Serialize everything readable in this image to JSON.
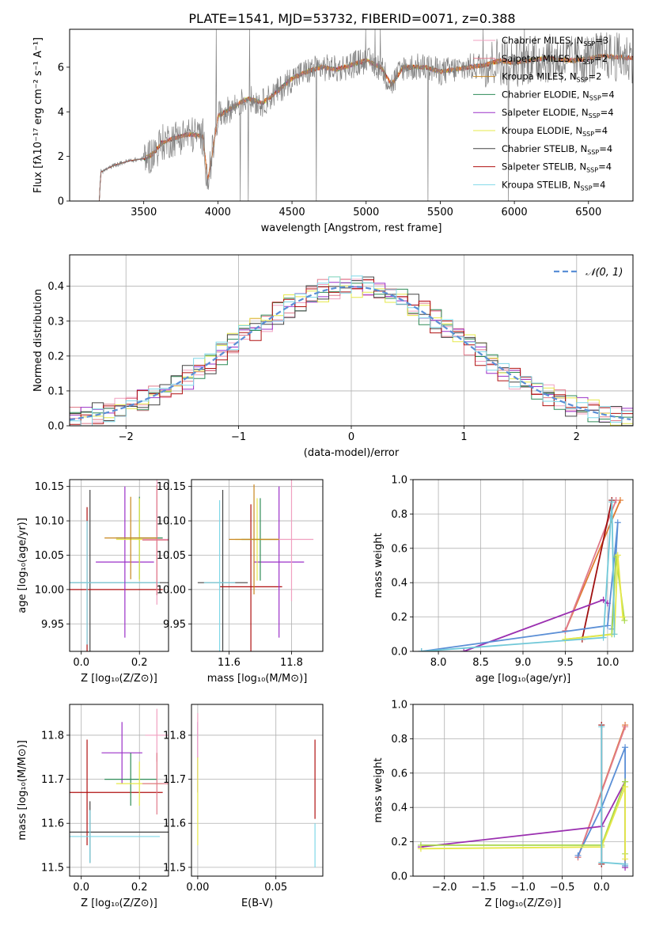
{
  "title": "PLATE=1541, MJD=53732, FIBERID=0071, z=0.388",
  "colors": {
    "chabrier_miles": "#f0a0c0",
    "salpeter_miles": "#e07a8a",
    "kroupa_miles": "#c8861e",
    "chabrier_elodie": "#2e8b57",
    "salpeter_elodie": "#9b30c8",
    "kroupa_elodie": "#e6e84a",
    "chabrier_stelib": "#444444",
    "salpeter_stelib": "#b01010",
    "kroupa_stelib": "#7fd8e8",
    "normal_curve": "#5b8fd6",
    "orange_line": "#e07a30",
    "blue_line": "#5b8fd6",
    "purple_line": "#9b30b0",
    "green_line": "#a8d84a",
    "darkred_line": "#a01010",
    "cyan_line": "#70c8d8"
  },
  "chart_data": [
    {
      "id": "spectrum",
      "type": "line",
      "title": "PLATE=1541, MJD=53732, FIBERID=0071, z=0.388",
      "xlabel": "wavelength [Angstrom, rest frame]",
      "ylabel": "Flux [fλ10⁻¹⁷ erg cm⁻² s⁻¹ A⁻¹]",
      "xlim": [
        3000,
        6800
      ],
      "ylim": [
        0,
        7.7
      ],
      "xticks": [
        "3500",
        "4000",
        "4500",
        "5000",
        "5500",
        "6000",
        "6500"
      ],
      "xtick_values": [
        3500,
        4000,
        4500,
        5000,
        5500,
        6000,
        6500
      ],
      "yticks": [
        "0",
        "2",
        "4",
        "6"
      ],
      "ytick_values": [
        0,
        2,
        4,
        6
      ],
      "continuum": [
        [
          3200,
          0
        ],
        [
          3210,
          1.3
        ],
        [
          3300,
          1.6
        ],
        [
          3400,
          1.8
        ],
        [
          3500,
          1.9
        ],
        [
          3560,
          2.1
        ],
        [
          3620,
          2.6
        ],
        [
          3700,
          2.8
        ],
        [
          3800,
          3.0
        ],
        [
          3900,
          2.9
        ],
        [
          3930,
          0.9
        ],
        [
          3960,
          2.0
        ],
        [
          4000,
          3.8
        ],
        [
          4100,
          4.2
        ],
        [
          4200,
          4.6
        ],
        [
          4300,
          4.4
        ],
        [
          4400,
          4.9
        ],
        [
          4500,
          5.5
        ],
        [
          4600,
          5.8
        ],
        [
          4700,
          6.0
        ],
        [
          4800,
          5.9
        ],
        [
          4900,
          6.1
        ],
        [
          5000,
          6.3
        ],
        [
          5100,
          6.0
        ],
        [
          5170,
          5.2
        ],
        [
          5250,
          6.0
        ],
        [
          5400,
          6.0
        ],
        [
          5500,
          5.8
        ],
        [
          5600,
          5.9
        ],
        [
          5700,
          6.0
        ],
        [
          5800,
          6.1
        ],
        [
          5900,
          6.3
        ],
        [
          6000,
          6.2
        ],
        [
          6200,
          6.4
        ],
        [
          6400,
          6.3
        ],
        [
          6600,
          6.5
        ],
        [
          6800,
          6.4
        ]
      ],
      "legend_position": "upper right",
      "legend": [
        {
          "label": "Chabrier MILES, N_SSP=3",
          "main": "Chabrier MILES, N",
          "sub": "SSP",
          "tail": "=3",
          "color_key": "chabrier_miles"
        },
        {
          "label": "Salpeter MILES, N_SSP=2",
          "main": "Salpeter MILES, N",
          "sub": "SSP",
          "tail": "=2",
          "color_key": "salpeter_miles"
        },
        {
          "label": "Kroupa MILES, N_SSP=2",
          "main": "Kroupa MILES, N",
          "sub": "SSP",
          "tail": "=2",
          "color_key": "kroupa_miles"
        },
        {
          "label": "Chabrier ELODIE, N_SSP=4",
          "main": "Chabrier ELODIE, N",
          "sub": "SSP",
          "tail": "=4",
          "color_key": "chabrier_elodie"
        },
        {
          "label": "Salpeter ELODIE, N_SSP=4",
          "main": "Salpeter ELODIE, N",
          "sub": "SSP",
          "tail": "=4",
          "color_key": "salpeter_elodie"
        },
        {
          "label": "Kroupa ELODIE, N_SSP=4",
          "main": "Kroupa ELODIE, N",
          "sub": "SSP",
          "tail": "=4",
          "color_key": "kroupa_elodie"
        },
        {
          "label": "Chabrier STELIB, N_SSP=4",
          "main": "Chabrier STELIB, N",
          "sub": "SSP",
          "tail": "=4",
          "color_key": "chabrier_stelib"
        },
        {
          "label": "Salpeter STELIB, N_SSP=4",
          "main": "Salpeter STELIB, N",
          "sub": "SSP",
          "tail": "=4",
          "color_key": "salpeter_stelib"
        },
        {
          "label": "Kroupa STELIB, N_SSP=4",
          "main": "Kroupa STELIB, N",
          "sub": "SSP",
          "tail": "=4",
          "color_key": "kroupa_stelib"
        }
      ]
    },
    {
      "id": "residuals",
      "type": "line",
      "xlabel": "(data-model)/error",
      "ylabel": "Normed distribution",
      "xlim": [
        -2.5,
        2.5
      ],
      "ylim": [
        0,
        0.49
      ],
      "xticks": [
        "−2",
        "−1",
        "0",
        "1",
        "2"
      ],
      "xtick_values": [
        -2,
        -1,
        0,
        1,
        2
      ],
      "yticks": [
        "0.0",
        "0.1",
        "0.2",
        "0.3",
        "0.4"
      ],
      "ytick_values": [
        0.0,
        0.1,
        0.2,
        0.3,
        0.4
      ],
      "grid": true,
      "legend_position": "upper right",
      "legend_label": "𝒩(0, 1)",
      "normal": {
        "mean": 0,
        "sigma": 1
      }
    },
    {
      "id": "age_vs_z",
      "type": "scatter",
      "xlabel": "Z [log₁₀(Z/Z⊙)]",
      "ylabel": "age  [log₁₀(age/yr)]",
      "xlim": [
        -0.04,
        0.3
      ],
      "ylim": [
        9.91,
        10.16
      ],
      "xticks": [
        "0.0",
        "0.2"
      ],
      "xtick_values": [
        0.0,
        0.2
      ],
      "yticks": [
        "9.95",
        "10.00",
        "10.05",
        "10.10",
        "10.15"
      ],
      "ytick_values": [
        9.95,
        10.0,
        10.05,
        10.1,
        10.15
      ],
      "grid": true,
      "points": [
        {
          "x": 0.03,
          "y": 10.01,
          "xerr": 0.27,
          "yerr": 0.135,
          "color_key": "chabrier_stelib"
        },
        {
          "x": 0.02,
          "y": 10.0,
          "xerr": 0.26,
          "yerr": 0.12,
          "color_key": "salpeter_stelib"
        },
        {
          "x": 0.02,
          "y": 10.01,
          "xerr": 0.25,
          "yerr": 0.09,
          "color_key": "kroupa_stelib"
        },
        {
          "x": 0.15,
          "y": 10.04,
          "xerr": 0.1,
          "yerr": 0.11,
          "color_key": "salpeter_elodie"
        },
        {
          "x": 0.2,
          "y": 10.075,
          "xerr": 0.08,
          "yerr": 0.06,
          "color_key": "chabrier_elodie"
        },
        {
          "x": 0.2,
          "y": 10.073,
          "xerr": 0.08,
          "yerr": 0.06,
          "color_key": "kroupa_elodie"
        },
        {
          "x": 0.26,
          "y": 10.073,
          "xerr": 0.05,
          "yerr": 0.095,
          "color_key": "chabrier_miles"
        },
        {
          "x": 0.26,
          "y": 10.072,
          "xerr": 0.05,
          "yerr": 0.08,
          "color_key": "salpeter_miles"
        },
        {
          "x": 0.17,
          "y": 10.075,
          "xerr": 0.09,
          "yerr": 0.06,
          "color_key": "kroupa_miles"
        }
      ]
    },
    {
      "id": "age_vs_mass",
      "type": "scatter",
      "xlabel": "mass [log₁₀(M/M⊙)]",
      "ylabel": "",
      "xlim": [
        11.48,
        11.9
      ],
      "ylim": [
        9.91,
        10.16
      ],
      "xticks": [
        "11.6",
        "11.8"
      ],
      "xtick_values": [
        11.6,
        11.8
      ],
      "yticks": [
        "9.95",
        "10.00",
        "10.05",
        "10.10",
        "10.15"
      ],
      "ytick_values": [
        9.95,
        10.0,
        10.05,
        10.1,
        10.15
      ],
      "grid": true,
      "points": [
        {
          "x": 11.58,
          "y": 10.01,
          "xerr": 0.08,
          "yerr": 0.135,
          "color_key": "chabrier_stelib"
        },
        {
          "x": 11.67,
          "y": 10.004,
          "xerr": 0.1,
          "yerr": 0.12,
          "color_key": "salpeter_stelib"
        },
        {
          "x": 11.57,
          "y": 10.01,
          "xerr": 0.05,
          "yerr": 0.12,
          "color_key": "kroupa_stelib"
        },
        {
          "x": 11.76,
          "y": 10.04,
          "xerr": 0.08,
          "yerr": 0.11,
          "color_key": "salpeter_elodie"
        },
        {
          "x": 11.7,
          "y": 10.073,
          "xerr": 0.06,
          "yerr": 0.06,
          "color_key": "chabrier_elodie"
        },
        {
          "x": 11.69,
          "y": 10.073,
          "xerr": 0.07,
          "yerr": 0.06,
          "color_key": "kroupa_elodie"
        },
        {
          "x": 11.8,
          "y": 10.073,
          "xerr": 0.07,
          "yerr": 0.09,
          "color_key": "chabrier_miles"
        },
        {
          "x": 11.68,
          "y": 10.073,
          "xerr": 0.08,
          "yerr": 0.08,
          "color_key": "kroupa_miles"
        }
      ]
    },
    {
      "id": "weight_vs_age",
      "type": "line",
      "xlabel": "age  [log₁₀(age/yr)]",
      "ylabel": "mass weight",
      "xlim": [
        7.7,
        10.3
      ],
      "ylim": [
        0,
        1
      ],
      "xticks": [
        "8.0",
        "8.5",
        "9.0",
        "9.5",
        "10.0"
      ],
      "xtick_values": [
        8.0,
        8.5,
        9.0,
        9.5,
        10.0
      ],
      "yticks": [
        "0.0",
        "0.2",
        "0.4",
        "0.6",
        "0.8",
        "1.0"
      ],
      "ytick_values": [
        0.0,
        0.2,
        0.4,
        0.6,
        0.8,
        1.0
      ],
      "grid": true,
      "series": [
        {
          "color_key": "orange_line",
          "points": [
            [
              9.5,
              0.12
            ],
            [
              10.15,
              0.88
            ]
          ]
        },
        {
          "color_key": "salpeter_miles",
          "points": [
            [
              9.5,
              0.12
            ],
            [
              10.1,
              0.88
            ]
          ]
        },
        {
          "color_key": "darkred_line",
          "points": [
            [
              9.7,
              0.07
            ],
            [
              10.05,
              0.88
            ]
          ]
        },
        {
          "color_key": "purple_line",
          "points": [
            [
              8.3,
              0.0
            ],
            [
              9.95,
              0.3
            ],
            [
              10.0,
              0.28
            ]
          ]
        },
        {
          "color_key": "blue_line",
          "points": [
            [
              7.8,
              0.0
            ],
            [
              10.0,
              0.15
            ],
            [
              10.12,
              0.75
            ],
            [
              10.05,
              0.13
            ]
          ]
        },
        {
          "color_key": "green_line",
          "points": [
            [
              9.5,
              0.07
            ],
            [
              10.05,
              0.1
            ],
            [
              10.1,
              0.55
            ],
            [
              10.2,
              0.18
            ]
          ]
        },
        {
          "color_key": "kroupa_elodie",
          "points": [
            [
              9.5,
              0.07
            ],
            [
              10.08,
              0.1
            ],
            [
              10.12,
              0.56
            ],
            [
              10.18,
              0.2
            ]
          ]
        },
        {
          "color_key": "cyan_line",
          "points": [
            [
              7.8,
              0.0
            ],
            [
              9.95,
              0.08
            ],
            [
              10.05,
              0.87
            ],
            [
              10.08,
              0.1
            ]
          ]
        }
      ]
    },
    {
      "id": "mass_vs_z",
      "type": "scatter",
      "xlabel": "Z [log₁₀(Z/Z⊙)]",
      "ylabel": "mass [log₁₀(M/M⊙)]",
      "xlim": [
        -0.04,
        0.3
      ],
      "ylim": [
        11.48,
        11.87
      ],
      "xticks": [
        "0.0",
        "0.2"
      ],
      "xtick_values": [
        0.0,
        0.2
      ],
      "yticks": [
        "11.5",
        "11.6",
        "11.7",
        "11.8"
      ],
      "ytick_values": [
        11.5,
        11.6,
        11.7,
        11.8
      ],
      "grid": true,
      "points": [
        {
          "x": 0.03,
          "y": 11.58,
          "xerr": 0.27,
          "yerr": 0.07,
          "color_key": "chabrier_stelib"
        },
        {
          "x": 0.02,
          "y": 11.67,
          "xerr": 0.26,
          "yerr": 0.12,
          "color_key": "salpeter_stelib"
        },
        {
          "x": 0.03,
          "y": 11.57,
          "xerr": 0.24,
          "yerr": 0.06,
          "color_key": "kroupa_stelib"
        },
        {
          "x": 0.14,
          "y": 11.76,
          "xerr": 0.07,
          "yerr": 0.07,
          "color_key": "salpeter_elodie"
        },
        {
          "x": 0.17,
          "y": 11.7,
          "xerr": 0.09,
          "yerr": 0.06,
          "color_key": "chabrier_elodie"
        },
        {
          "x": 0.2,
          "y": 11.69,
          "xerr": 0.08,
          "yerr": 0.05,
          "color_key": "kroupa_elodie"
        },
        {
          "x": 0.26,
          "y": 11.8,
          "xerr": 0.04,
          "yerr": 0.06,
          "color_key": "chabrier_miles"
        },
        {
          "x": 0.26,
          "y": 11.69,
          "xerr": 0.05,
          "yerr": 0.07,
          "color_key": "salpeter_miles"
        }
      ]
    },
    {
      "id": "mass_vs_ebv",
      "type": "scatter",
      "xlabel": "E(B-V)",
      "ylabel": "",
      "xlim": [
        -0.004,
        0.08
      ],
      "ylim": [
        11.48,
        11.87
      ],
      "xticks": [
        "0.00",
        "0.05"
      ],
      "xtick_values": [
        0.0,
        0.05
      ],
      "yticks": [
        "11.5",
        "11.6",
        "11.7",
        "11.8"
      ],
      "ytick_values": [
        11.5,
        11.6,
        11.7,
        11.8
      ],
      "grid": true,
      "points": [
        {
          "x": 0.0,
          "y": 11.75,
          "yerr": 0.08,
          "color_key": "salpeter_elodie"
        },
        {
          "x": 0.0,
          "y": 11.65,
          "yerr": 0.1,
          "color_key": "kroupa_elodie"
        },
        {
          "x": 0.0,
          "y": 11.8,
          "yerr": 0.05,
          "color_key": "chabrier_miles"
        },
        {
          "x": 0.075,
          "y": 11.7,
          "yerr": 0.09,
          "color_key": "salpeter_stelib"
        },
        {
          "x": 0.075,
          "y": 11.55,
          "yerr": 0.05,
          "color_key": "kroupa_stelib"
        }
      ]
    },
    {
      "id": "weight_vs_z",
      "type": "line",
      "xlabel": "Z [log₁₀(Z/Z⊙)]",
      "ylabel": "mass weight",
      "xlim": [
        -2.4,
        0.4
      ],
      "ylim": [
        0,
        1
      ],
      "xticks": [
        "−2.0",
        "−1.5",
        "−1.0",
        "−0.5",
        "0.0"
      ],
      "xtick_values": [
        -2.0,
        -1.5,
        -1.0,
        -0.5,
        0.0
      ],
      "yticks": [
        "0.0",
        "0.2",
        "0.4",
        "0.6",
        "0.8",
        "1.0"
      ],
      "ytick_values": [
        0.0,
        0.2,
        0.4,
        0.6,
        0.8,
        1.0
      ],
      "grid": true,
      "series": [
        {
          "color_key": "orange_line",
          "points": [
            [
              -0.3,
              0.11
            ],
            [
              0.3,
              0.88
            ]
          ]
        },
        {
          "color_key": "salpeter_miles",
          "points": [
            [
              -0.3,
              0.11
            ],
            [
              0.3,
              0.87
            ]
          ]
        },
        {
          "color_key": "darkred_line",
          "points": [
            [
              0.0,
              0.88
            ],
            [
              0.0,
              0.07
            ]
          ]
        },
        {
          "color_key": "blue_line",
          "points": [
            [
              -0.3,
              0.12
            ],
            [
              0.0,
              0.4
            ],
            [
              0.3,
              0.75
            ],
            [
              0.3,
              0.06
            ]
          ]
        },
        {
          "color_key": "purple_line",
          "points": [
            [
              -2.3,
              0.17
            ],
            [
              0.0,
              0.29
            ],
            [
              0.3,
              0.55
            ],
            [
              0.3,
              0.05
            ]
          ]
        },
        {
          "color_key": "green_line",
          "points": [
            [
              -2.3,
              0.18
            ],
            [
              0.0,
              0.18
            ],
            [
              0.3,
              0.55
            ],
            [
              0.3,
              0.13
            ]
          ]
        },
        {
          "color_key": "kroupa_elodie",
          "points": [
            [
              -2.3,
              0.16
            ],
            [
              0.0,
              0.17
            ],
            [
              0.3,
              0.52
            ],
            [
              0.3,
              0.1
            ]
          ]
        },
        {
          "color_key": "cyan_line",
          "points": [
            [
              0.0,
              0.87
            ],
            [
              0.0,
              0.08
            ],
            [
              0.3,
              0.07
            ]
          ]
        }
      ]
    }
  ]
}
